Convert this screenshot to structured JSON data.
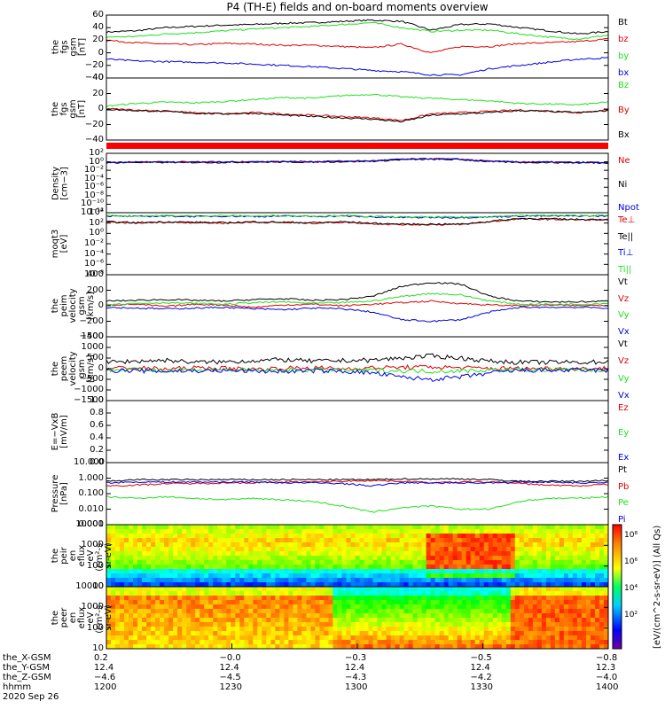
{
  "title": "P4 (TH-E) fields and on-board moments overview",
  "colors": {
    "black": "#000000",
    "red": "#e00000",
    "green": "#20e020",
    "blue": "#0000e0"
  },
  "chart_data": [
    {
      "type": "line",
      "ylabel": [
        "the",
        "fgs",
        "gsm",
        "[nT]"
      ],
      "yticks": [
        "60",
        "40",
        "20",
        "0",
        "−20",
        "−40"
      ],
      "ylim": [
        -40,
        60
      ],
      "series": [
        {
          "name": "Bt",
          "color": "black",
          "values": [
            33,
            35,
            40,
            42,
            44,
            45,
            47,
            48,
            50,
            52,
            50,
            36,
            45,
            46,
            40,
            35,
            30,
            34
          ]
        },
        {
          "name": "bz",
          "color": "red",
          "values": [
            20,
            16,
            14,
            13,
            15,
            14,
            12,
            12,
            10,
            8,
            14,
            0,
            10,
            10,
            15,
            16,
            18,
            22
          ]
        },
        {
          "name": "by",
          "color": "green",
          "values": [
            25,
            26,
            30,
            32,
            35,
            38,
            40,
            42,
            45,
            48,
            40,
            34,
            36,
            36,
            30,
            25,
            22,
            28
          ]
        },
        {
          "name": "bx",
          "color": "blue",
          "values": [
            -10,
            -13,
            -14,
            -15,
            -16,
            -18,
            -20,
            -22,
            -25,
            -28,
            -30,
            -35,
            -35,
            -25,
            -20,
            -15,
            -10,
            -8
          ]
        }
      ]
    },
    {
      "type": "line",
      "ylabel": [
        "the",
        "fgs",
        "gsm",
        "[nT]"
      ],
      "yticks": [
        "40",
        "20",
        "0",
        "−20",
        "−40"
      ],
      "ylim": [
        -50,
        45
      ],
      "series": [
        {
          "name": "Bz",
          "color": "green",
          "values": [
            2,
            6,
            8,
            7,
            9,
            12,
            15,
            14,
            18,
            20,
            16,
            14,
            12,
            10,
            6,
            5,
            4,
            8
          ]
        },
        {
          "name": "By",
          "color": "red",
          "values": [
            -2,
            -4,
            -6,
            -8,
            -10,
            -8,
            -10,
            -12,
            -14,
            -16,
            -20,
            -10,
            -8,
            -6,
            -4,
            -6,
            -8,
            -4
          ]
        },
        {
          "name": "Bx",
          "color": "black",
          "values": [
            -3,
            -5,
            -6,
            -9,
            -10,
            -9,
            -12,
            -14,
            -16,
            -18,
            -22,
            -12,
            -10,
            -8,
            -5,
            -6,
            -8,
            -5
          ]
        }
      ]
    },
    {
      "type": "line",
      "ylabel": [
        "Density",
        "[cm−3]"
      ],
      "yticks": [
        "10²",
        "10⁰",
        "10⁻²",
        "10⁻⁴",
        "10⁻⁶",
        "10⁻⁸",
        "10⁻¹⁰",
        "10⁻¹²"
      ],
      "ylim": [
        -12.5,
        2.5
      ],
      "log": true,
      "series": [
        {
          "name": "Ne",
          "color": "red",
          "values": [
            0.2,
            0.3,
            0.3,
            0.3,
            0.3,
            0.4,
            0.4,
            0.4,
            0.5,
            0.6,
            1.0,
            1.1,
            1.0,
            0.5,
            0.3,
            0.3,
            0.2,
            0.2
          ]
        },
        {
          "name": "Ni",
          "color": "black",
          "values": [
            0.1,
            0.2,
            0.2,
            0.2,
            0.2,
            0.3,
            0.3,
            0.3,
            0.4,
            0.5,
            0.9,
            1.0,
            0.9,
            0.4,
            0.2,
            0.2,
            0.1,
            0.1
          ]
        },
        {
          "name": "Npot",
          "color": "blue",
          "values": [
            0.2,
            0.3,
            0.3,
            0.3,
            0.3,
            0.4,
            0.4,
            0.4,
            0.5,
            0.6,
            1.0,
            1.1,
            1.0,
            0.5,
            0.3,
            0.3,
            0.2,
            0.2
          ]
        }
      ]
    },
    {
      "type": "line",
      "ylabel": [
        "moqt3",
        "[eV]"
      ],
      "yticks": [
        "10⁴",
        "10²",
        "10⁰",
        "10⁻²",
        "10⁻⁴",
        "10⁻⁶",
        "10⁻⁸"
      ],
      "ylim": [
        -8.5,
        4.5
      ],
      "log": true,
      "series": [
        {
          "name": "Te⊥",
          "color": "red",
          "values": [
            2.5,
            2.3,
            2.5,
            2.4,
            2.3,
            2.5,
            2.4,
            2.3,
            2.5,
            2.2,
            2.0,
            2.0,
            2.0,
            2.6,
            3.2,
            3.1,
            3.0,
            3.0
          ]
        },
        {
          "name": "Te||",
          "color": "black",
          "values": [
            2.6,
            2.4,
            2.6,
            2.5,
            2.4,
            2.6,
            2.5,
            2.4,
            2.6,
            2.3,
            2.1,
            2.1,
            2.1,
            2.7,
            3.3,
            3.2,
            3.1,
            3.1
          ]
        },
        {
          "name": "Ti⊥",
          "color": "blue",
          "values": [
            3.8,
            3.7,
            3.8,
            3.7,
            3.8,
            3.7,
            3.8,
            3.7,
            3.8,
            3.6,
            3.5,
            3.5,
            3.5,
            3.6,
            3.8,
            3.8,
            3.8,
            3.8
          ]
        },
        {
          "name": "Ti||",
          "color": "green",
          "values": [
            3.9,
            3.8,
            3.9,
            3.8,
            3.9,
            3.8,
            3.9,
            3.8,
            3.9,
            3.7,
            3.6,
            3.6,
            3.6,
            3.7,
            3.9,
            3.9,
            3.9,
            3.9
          ]
        }
      ]
    },
    {
      "type": "line",
      "ylabel": [
        "the",
        "peim",
        "velocity",
        "gsm",
        "[km/s]"
      ],
      "yticks": [
        "400",
        "200",
        "0",
        "−200",
        "−400"
      ],
      "ylim": [
        -400,
        400
      ],
      "series": [
        {
          "name": "Vt",
          "color": "black",
          "values": [
            60,
            70,
            80,
            70,
            60,
            80,
            90,
            70,
            80,
            120,
            250,
            300,
            280,
            120,
            60,
            50,
            50,
            60
          ]
        },
        {
          "name": "Vz",
          "color": "red",
          "values": [
            10,
            20,
            -10,
            20,
            10,
            -20,
            10,
            20,
            0,
            20,
            40,
            60,
            30,
            10,
            0,
            10,
            0,
            10
          ]
        },
        {
          "name": "Vy",
          "color": "green",
          "values": [
            20,
            30,
            40,
            30,
            20,
            40,
            50,
            30,
            40,
            60,
            120,
            160,
            140,
            60,
            20,
            20,
            20,
            30
          ]
        },
        {
          "name": "Vx",
          "color": "blue",
          "values": [
            -20,
            -30,
            -40,
            -30,
            -20,
            -40,
            -50,
            -30,
            -40,
            -80,
            -180,
            -200,
            -180,
            -80,
            -20,
            -20,
            -20,
            -30
          ]
        }
      ]
    },
    {
      "type": "line",
      "ylabel": [
        "the",
        "peem",
        "velocity",
        "gsm",
        "[km/s]"
      ],
      "yticks": [
        "1500",
        "1000",
        "500",
        "0",
        "−500",
        "−1000",
        "−1500"
      ],
      "ylim": [
        -1500,
        1500
      ],
      "series": [
        {
          "name": "Vt",
          "color": "black",
          "values": [
            300,
            350,
            400,
            300,
            320,
            380,
            420,
            350,
            380,
            400,
            500,
            600,
            500,
            350,
            300,
            300,
            300,
            320
          ]
        },
        {
          "name": "Vz",
          "color": "red",
          "values": [
            20,
            40,
            -20,
            30,
            20,
            -30,
            20,
            40,
            0,
            40,
            60,
            80,
            40,
            20,
            0,
            20,
            0,
            20
          ]
        },
        {
          "name": "Vy",
          "color": "green",
          "values": [
            -50,
            -60,
            -70,
            -50,
            -60,
            -70,
            -80,
            -60,
            -70,
            -80,
            -100,
            -120,
            -100,
            -60,
            -50,
            -50,
            -50,
            -60
          ]
        },
        {
          "name": "Vx",
          "color": "blue",
          "values": [
            -80,
            -100,
            -120,
            -100,
            -90,
            -110,
            -130,
            -100,
            -120,
            -200,
            -400,
            -500,
            -400,
            -200,
            -80,
            -80,
            -80,
            -90
          ]
        }
      ]
    },
    {
      "type": "line",
      "ylabel": [
        "E=−VxB",
        "[mV/m]"
      ],
      "yticks": [
        "1.0",
        "0.8",
        "0.6",
        "0.4",
        "0.2",
        "0.0"
      ],
      "ylim": [
        0,
        1
      ],
      "series": [
        {
          "name": "Ez",
          "color": "red",
          "values": []
        },
        {
          "name": "Ey",
          "color": "green",
          "values": []
        },
        {
          "name": "Ex",
          "color": "blue",
          "values": []
        }
      ]
    },
    {
      "type": "line",
      "ylabel": [
        "Pressure",
        "[nPa]"
      ],
      "yticks": [
        "10.000",
        "1.000",
        "0.100",
        "0.010",
        "0.001"
      ],
      "ylim": [
        -3,
        1
      ],
      "log": true,
      "series": [
        {
          "name": "Pt",
          "color": "black",
          "values": [
            -0.2,
            -0.1,
            -0.1,
            -0.1,
            -0.1,
            -0.1,
            -0.1,
            -0.1,
            -0.1,
            -0.1,
            -0.05,
            -0.05,
            -0.05,
            -0.1,
            -0.2,
            -0.2,
            -0.2,
            -0.15
          ]
        },
        {
          "name": "Pb",
          "color": "red",
          "values": [
            -0.5,
            -0.45,
            -0.35,
            -0.35,
            -0.3,
            -0.3,
            -0.25,
            -0.25,
            -0.2,
            -0.15,
            -0.2,
            -0.3,
            -0.25,
            -0.25,
            -0.35,
            -0.45,
            -0.5,
            -0.4
          ]
        },
        {
          "name": "Pe",
          "color": "green",
          "values": [
            -1.2,
            -1.3,
            -1.2,
            -1.3,
            -1.4,
            -1.3,
            -1.4,
            -1.5,
            -1.8,
            -2.2,
            -1.9,
            -1.8,
            -2.0,
            -2.0,
            -1.5,
            -1.3,
            -1.3,
            -1.2
          ]
        },
        {
          "name": "Pi",
          "color": "blue",
          "values": [
            -0.3,
            -0.25,
            -0.25,
            -0.25,
            -0.25,
            -0.25,
            -0.3,
            -0.3,
            -0.35,
            -0.5,
            -0.3,
            -0.3,
            -0.3,
            -0.3,
            -0.25,
            -0.25,
            -0.3,
            -0.3
          ]
        }
      ]
    },
    {
      "type": "heatmap",
      "ylabel": [
        "the",
        "peir",
        "en",
        "eflux",
        "eV",
        "(cm²-s-",
        "sr-eV)"
      ],
      "yticks": [
        "10000",
        "1000",
        "100",
        "10"
      ],
      "ylim": [
        1,
        4.5
      ],
      "log": true
    },
    {
      "type": "heatmap",
      "ylabel": [
        "the",
        "peer",
        "en",
        "eflux",
        "eV",
        "(cm²-s-",
        "sr-eV)"
      ],
      "yticks": [
        "10000",
        "1000",
        "100",
        "10"
      ],
      "ylim": [
        1,
        4.5
      ],
      "log": true
    }
  ],
  "colorbar": {
    "ticks": [
      "10⁸",
      "10⁶",
      "10⁴",
      "10²"
    ],
    "label": "[eV/(cm^2-s-sr-eV)] (All Qs)"
  },
  "x_axis": {
    "rows": [
      {
        "name": "the_X-GSM",
        "values": [
          "0.2",
          "−0.0",
          "−0.3",
          "−0.5",
          "−0.8"
        ]
      },
      {
        "name": "the_Y-GSM",
        "values": [
          "12.4",
          "12.4",
          "12.4",
          "12.4",
          "12.3"
        ]
      },
      {
        "name": "the_Z-GSM",
        "values": [
          "−4.6",
          "−4.5",
          "−4.3",
          "−4.2",
          "−4.0"
        ]
      },
      {
        "name": "hhmm",
        "values": [
          "1200",
          "1230",
          "1300",
          "1330",
          "1400"
        ]
      }
    ],
    "date": "2020 Sep 26"
  }
}
